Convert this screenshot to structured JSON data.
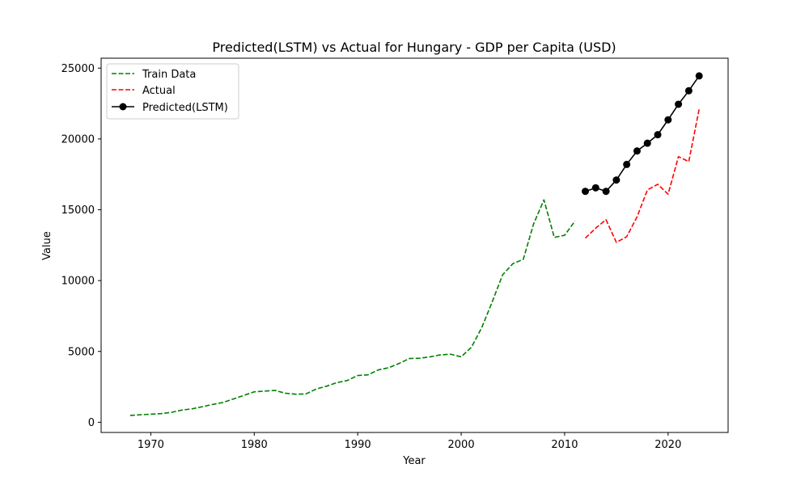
{
  "chart_data": {
    "type": "line",
    "title": "Predicted(LSTM) vs Actual for Hungary - GDP per Capita (USD)",
    "xlabel": "Year",
    "ylabel": "Value",
    "xlim": [
      1965.2,
      2025.8
    ],
    "ylim": [
      -720,
      25700
    ],
    "xticks": [
      1970,
      1980,
      1990,
      2000,
      2010,
      2020
    ],
    "yticks": [
      0,
      5000,
      10000,
      15000,
      20000,
      25000
    ],
    "legend_position": "upper-left",
    "series": [
      {
        "name": "Train Data",
        "color": "#008000",
        "style": "dashed",
        "marker": "none",
        "x": [
          1968,
          1969,
          1970,
          1971,
          1972,
          1973,
          1974,
          1975,
          1976,
          1977,
          1978,
          1979,
          1980,
          1981,
          1982,
          1983,
          1984,
          1985,
          1986,
          1987,
          1988,
          1989,
          1990,
          1991,
          1992,
          1993,
          1994,
          1995,
          1996,
          1997,
          1998,
          1999,
          2000,
          2001,
          2002,
          2003,
          2004,
          2005,
          2006,
          2007,
          2008,
          2009,
          2010,
          2011
        ],
        "y": [
          480,
          530,
          570,
          610,
          700,
          860,
          950,
          1100,
          1260,
          1400,
          1650,
          1900,
          2150,
          2200,
          2250,
          2050,
          1980,
          2000,
          2350,
          2550,
          2800,
          2950,
          3300,
          3350,
          3700,
          3850,
          4150,
          4500,
          4520,
          4620,
          4760,
          4800,
          4620,
          5300,
          6700,
          8500,
          10400,
          11200,
          11500,
          14000,
          15700,
          13050,
          13200,
          14200
        ]
      },
      {
        "name": "Actual",
        "color": "#ff0000",
        "style": "dashed",
        "marker": "none",
        "x": [
          2012,
          2013,
          2014,
          2015,
          2016,
          2017,
          2018,
          2019,
          2020,
          2021,
          2022,
          2023
        ],
        "y": [
          13000,
          13700,
          14300,
          12700,
          13100,
          14500,
          16400,
          16800,
          16100,
          18750,
          18400,
          22100
        ]
      },
      {
        "name": "Predicted(LSTM)",
        "color": "#000000",
        "style": "solid",
        "marker": "circle",
        "x": [
          2012,
          2013,
          2014,
          2015,
          2016,
          2017,
          2018,
          2019,
          2020,
          2021,
          2022,
          2023
        ],
        "y": [
          16300,
          16550,
          16300,
          17100,
          18200,
          19150,
          19700,
          20300,
          21350,
          22450,
          23400,
          24450
        ]
      }
    ]
  }
}
